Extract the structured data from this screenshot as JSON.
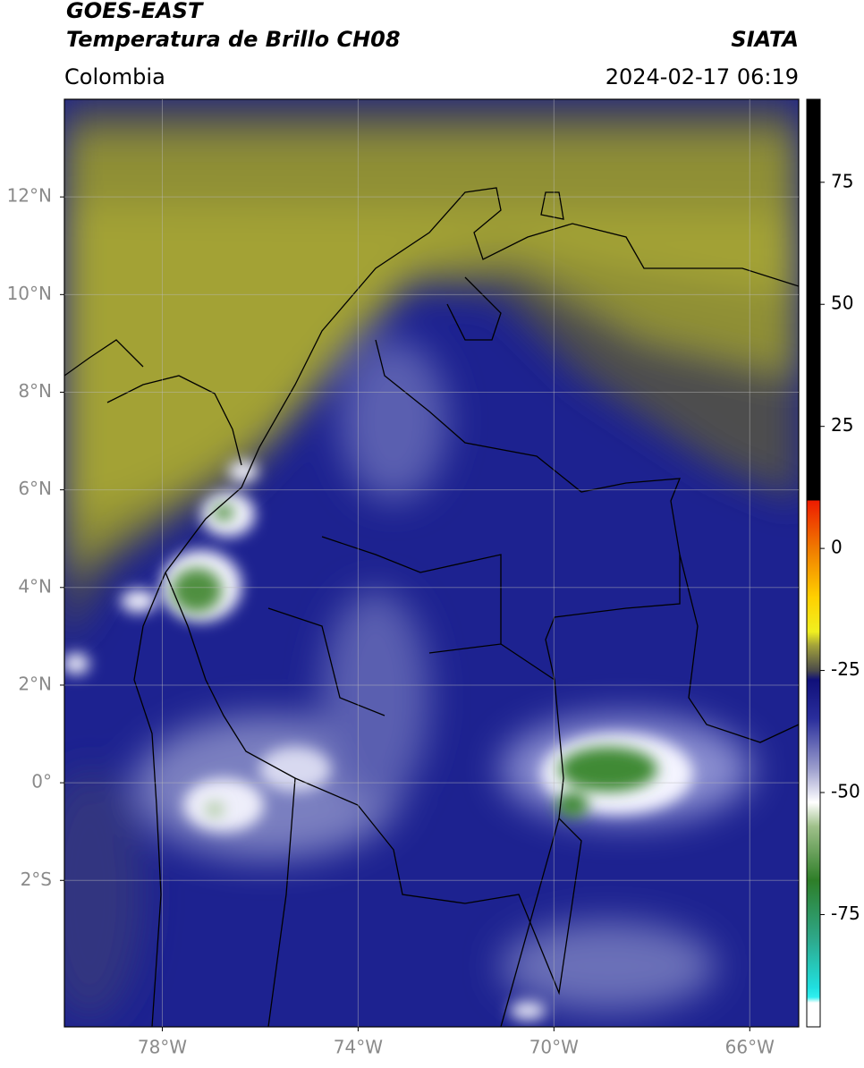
{
  "header": {
    "title": "GOES-EAST",
    "subtitle": "Temperatura de Brillo CH08",
    "source": "SIATA",
    "region": "Colombia",
    "timestamp": "2024-02-17 06:19"
  },
  "map": {
    "xlim": [
      -80,
      -65
    ],
    "ylim": [
      -5,
      14
    ],
    "xticks": [
      {
        "value": -78,
        "label": "78°W"
      },
      {
        "value": -74,
        "label": "74°W"
      },
      {
        "value": -70,
        "label": "70°W"
      },
      {
        "value": -66,
        "label": "66°W"
      }
    ],
    "yticks": [
      {
        "value": 12,
        "label": "12°N"
      },
      {
        "value": 10,
        "label": "10°N"
      },
      {
        "value": 8,
        "label": "8°N"
      },
      {
        "value": 6,
        "label": "6°N"
      },
      {
        "value": 4,
        "label": "4°N"
      },
      {
        "value": 2,
        "label": "2°N"
      },
      {
        "value": 0,
        "label": "0°"
      },
      {
        "value": -2,
        "label": "2°S"
      }
    ]
  },
  "colorbar": {
    "lim": [
      -98,
      92
    ],
    "ticks": [
      75,
      50,
      25,
      0,
      -25,
      -50,
      -75
    ]
  }
}
